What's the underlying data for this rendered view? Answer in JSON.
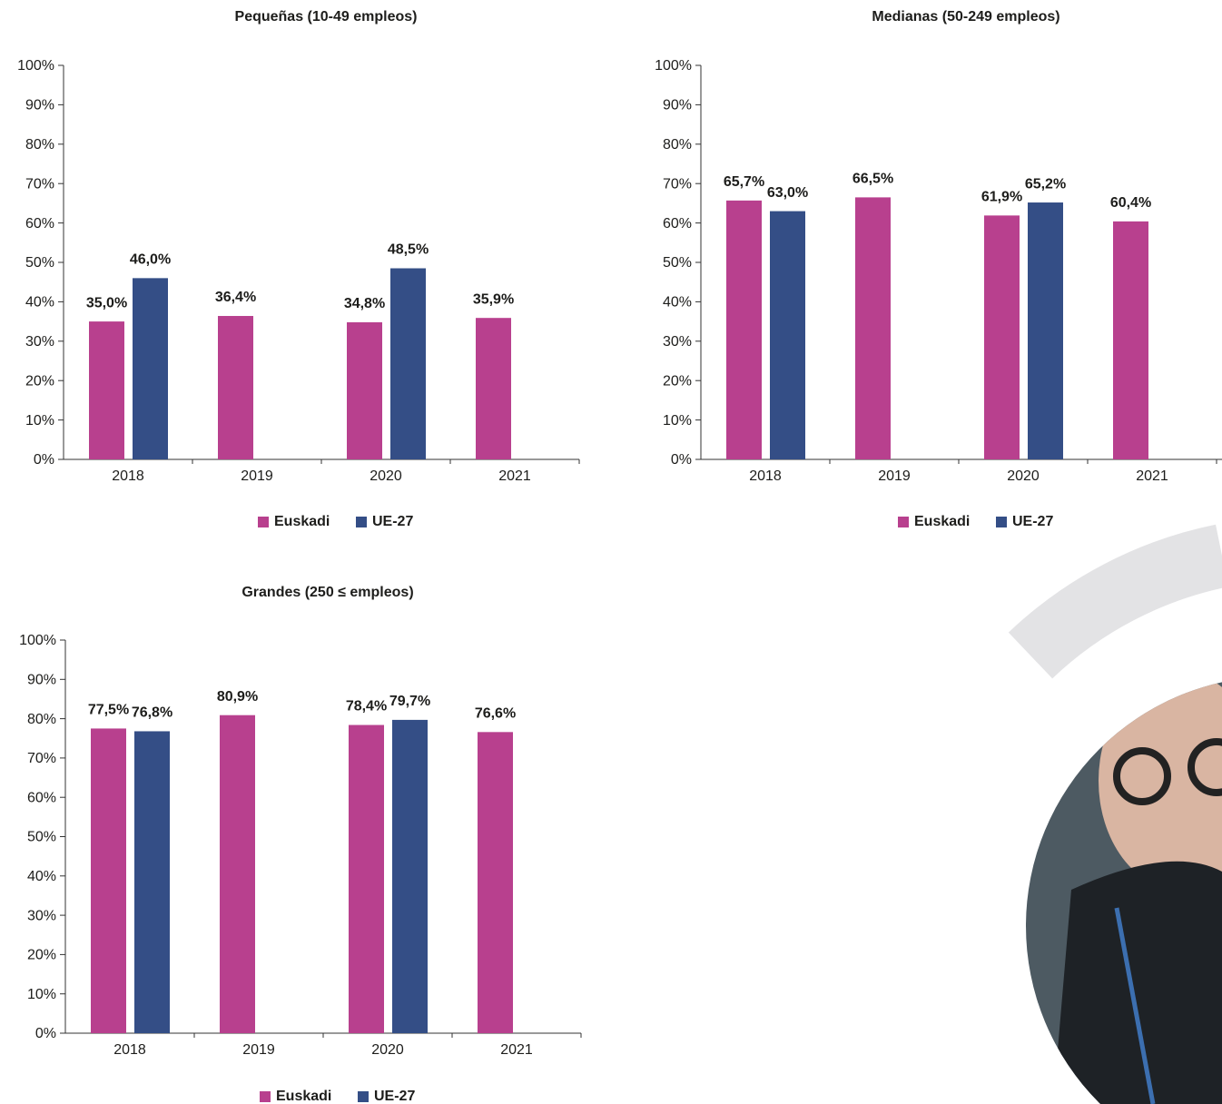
{
  "chart_data": [
    {
      "type": "bar",
      "title": "Pequeñas (10-49 empleos)",
      "categories": [
        "2018",
        "2019",
        "2020",
        "2021"
      ],
      "series": [
        {
          "name": "Euskadi",
          "color": "#b8408e",
          "values": [
            35.0,
            36.4,
            34.8,
            35.9
          ],
          "value_labels": [
            "35,0%",
            "36,4%",
            "34,8%",
            "35,9%"
          ]
        },
        {
          "name": "UE-27",
          "color": "#344e86",
          "values": [
            46.0,
            null,
            48.5,
            null
          ],
          "value_labels": [
            "46,0%",
            null,
            "48,5%",
            null
          ]
        }
      ],
      "ylim": [
        0,
        100
      ],
      "yticks": [
        {
          "value": 0,
          "label": "0%"
        },
        {
          "value": 10,
          "label": "10%"
        },
        {
          "value": 20,
          "label": "20%"
        },
        {
          "value": 30,
          "label": "30%"
        },
        {
          "value": 40,
          "label": "40%"
        },
        {
          "value": 50,
          "label": "50%"
        },
        {
          "value": 60,
          "label": "60%"
        },
        {
          "value": 70,
          "label": "70%"
        },
        {
          "value": 80,
          "label": "80%"
        },
        {
          "value": 90,
          "label": "90%"
        },
        {
          "value": 100,
          "label": "100%"
        }
      ]
    },
    {
      "type": "bar",
      "title": "Medianas (50-249 empleos)",
      "categories": [
        "2018",
        "2019",
        "2020",
        "2021"
      ],
      "series": [
        {
          "name": "Euskadi",
          "color": "#b8408e",
          "values": [
            65.7,
            66.5,
            61.9,
            60.4
          ],
          "value_labels": [
            "65,7%",
            "66,5%",
            "61,9%",
            "60,4%"
          ]
        },
        {
          "name": "UE-27",
          "color": "#344e86",
          "values": [
            63.0,
            null,
            65.2,
            null
          ],
          "value_labels": [
            "63,0%",
            null,
            "65,2%",
            null
          ]
        }
      ],
      "ylim": [
        0,
        100
      ],
      "yticks": [
        {
          "value": 0,
          "label": "0%"
        },
        {
          "value": 10,
          "label": "10%"
        },
        {
          "value": 20,
          "label": "20%"
        },
        {
          "value": 30,
          "label": "30%"
        },
        {
          "value": 40,
          "label": "40%"
        },
        {
          "value": 50,
          "label": "50%"
        },
        {
          "value": 60,
          "label": "60%"
        },
        {
          "value": 70,
          "label": "70%"
        },
        {
          "value": 80,
          "label": "80%"
        },
        {
          "value": 90,
          "label": "90%"
        },
        {
          "value": 100,
          "label": "100%"
        }
      ]
    },
    {
      "type": "bar",
      "title": "Grandes (250 ≤ empleos)",
      "categories": [
        "2018",
        "2019",
        "2020",
        "2021"
      ],
      "series": [
        {
          "name": "Euskadi",
          "color": "#b8408e",
          "values": [
            77.5,
            80.9,
            78.4,
            76.6
          ],
          "value_labels": [
            "77,5%",
            "80,9%",
            "78,4%",
            "76,6%"
          ]
        },
        {
          "name": "UE-27",
          "color": "#344e86",
          "values": [
            76.8,
            null,
            79.7,
            null
          ],
          "value_labels": [
            "76,8%",
            null,
            "79,7%",
            null
          ]
        }
      ],
      "ylim": [
        0,
        100
      ],
      "yticks": [
        {
          "value": 0,
          "label": "0%"
        },
        {
          "value": 10,
          "label": "10%"
        },
        {
          "value": 20,
          "label": "20%"
        },
        {
          "value": 30,
          "label": "30%"
        },
        {
          "value": 40,
          "label": "40%"
        },
        {
          "value": 50,
          "label": "50%"
        },
        {
          "value": 60,
          "label": "60%"
        },
        {
          "value": 70,
          "label": "70%"
        },
        {
          "value": 80,
          "label": "80%"
        },
        {
          "value": 90,
          "label": "90%"
        },
        {
          "value": 100,
          "label": "100%"
        }
      ]
    }
  ]
}
